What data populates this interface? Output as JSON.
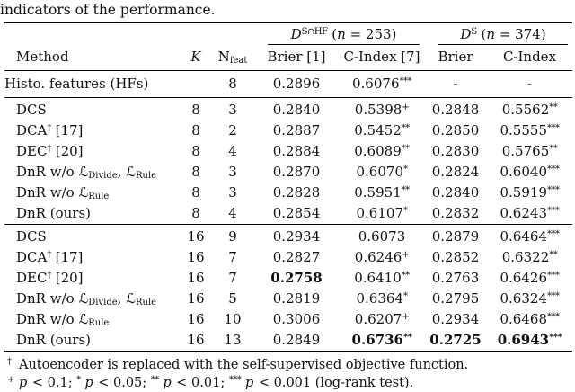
{
  "caption": "indicators of the performance.",
  "table": {
    "groups": [
      {
        "label": "«D»^S∩HF^ («n» = 253)"
      },
      {
        "label": "«D»^S^ («n» = 374)"
      }
    ],
    "columns": [
      "Method",
      "«K»",
      "N~feat~",
      "Brier [1]",
      "C-Index [7]",
      "Brier",
      "C-Index"
    ],
    "sections": [
      {
        "rows": [
          {
            "method": "Histo. features (HFs)",
            "k": "",
            "nfeat": "8",
            "vals": [
              "0.2896",
              "0.6076^***^",
              "-",
              "-"
            ]
          }
        ]
      },
      {
        "rows": [
          {
            "method": "DCS",
            "k": "8",
            "nfeat": "3",
            "vals": [
              "0.2840",
              "0.5398^+^",
              "0.2848",
              "0.5562^**^"
            ]
          },
          {
            "method": "DCA^†^ [17]",
            "k": "8",
            "nfeat": "2",
            "vals": [
              "0.2887",
              "0.5452^**^",
              "0.2850",
              "0.5555^***^"
            ]
          },
          {
            "method": "DEC^†^ [20]",
            "k": "8",
            "nfeat": "4",
            "vals": [
              "0.2884",
              "0.6089^**^",
              "0.2830",
              "0.5765^**^"
            ]
          },
          {
            "method": "DnR w/o ℒ~Divide~, ℒ~Rule~",
            "k": "8",
            "nfeat": "3",
            "vals": [
              "0.2870",
              "0.6070^*^",
              "0.2824",
              "0.6040^***^"
            ]
          },
          {
            "method": "DnR w/o ℒ~Rule~",
            "k": "8",
            "nfeat": "3",
            "vals": [
              "0.2828",
              "0.5951^**^",
              "0.2840",
              "0.5919^***^"
            ]
          },
          {
            "method": "DnR (ours)",
            "k": "8",
            "nfeat": "4",
            "vals": [
              "0.2854",
              "0.6107^*^",
              "0.2832",
              "0.6243^***^"
            ]
          }
        ]
      },
      {
        "rows": [
          {
            "method": "DCS",
            "k": "16",
            "nfeat": "9",
            "vals": [
              "0.2934",
              "0.6073",
              "0.2879",
              "0.6464^***^"
            ]
          },
          {
            "method": "DCA^†^ [17]",
            "k": "16",
            "nfeat": "7",
            "vals": [
              "0.2827",
              "0.6246^+^",
              "0.2852",
              "0.6322^**^"
            ]
          },
          {
            "method": "DEC^†^ [20]",
            "k": "16",
            "nfeat": "7",
            "vals": [
              "0.2758",
              "0.6410^**^",
              "0.2763",
              "0.6426^***^"
            ],
            "bold": [
              true,
              false,
              false,
              false
            ]
          },
          {
            "method": "DnR w/o ℒ~Divide~, ℒ~Rule~",
            "k": "16",
            "nfeat": "5",
            "vals": [
              "0.2819",
              "0.6364^*^",
              "0.2795",
              "0.6324^***^"
            ]
          },
          {
            "method": "DnR w/o ℒ~Rule~",
            "k": "16",
            "nfeat": "10",
            "vals": [
              "0.3006",
              "0.6207^+^",
              "0.2934",
              "0.6468^***^"
            ]
          },
          {
            "method": "DnR (ours)",
            "k": "16",
            "nfeat": "13",
            "vals": [
              "0.2849",
              "0.6736^**^",
              "0.2725",
              "0.6943^***^"
            ],
            "bold": [
              false,
              true,
              true,
              true
            ]
          }
        ]
      }
    ]
  },
  "footnotes": [
    {
      "symbol": "†",
      "text": "Autoencoder is replaced with the self-supervised objective function."
    },
    {
      "symbol": "+",
      "text": "«p» < 0.1; ^*^ «p» < 0.05; ^**^ «p» < 0.01; ^***^ «p» < 0.001 (log-rank test)."
    }
  ]
}
